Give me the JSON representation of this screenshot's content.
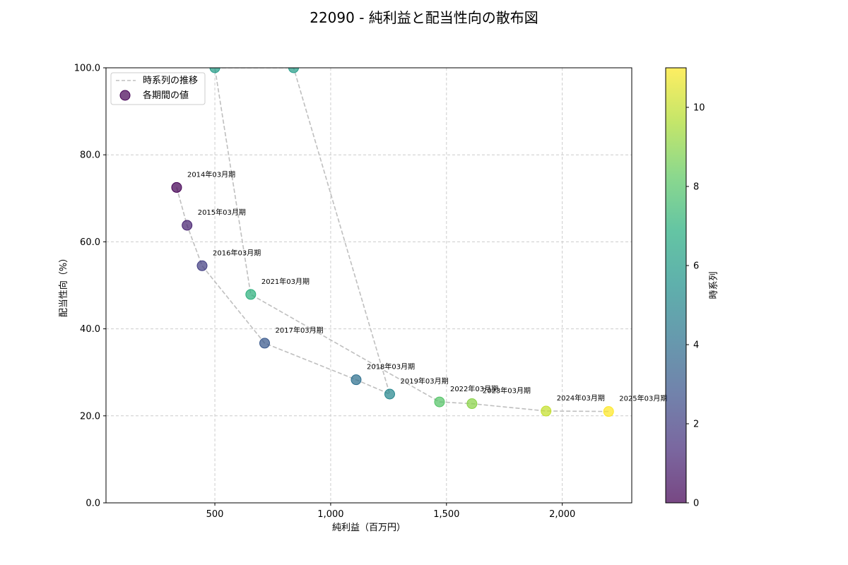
{
  "chart_data": {
    "type": "scatter",
    "title": "22090 - 純利益と配当性向の散布図",
    "xlabel": "純利益（百万円）",
    "ylabel": "配当性向（%）",
    "xlim": [
      30,
      2300
    ],
    "ylim": [
      0,
      100
    ],
    "xticks": [
      500,
      1000,
      1500,
      2000
    ],
    "xtick_labels": [
      "500",
      "1,000",
      "1,500",
      "2,000"
    ],
    "yticks": [
      0,
      20,
      40,
      60,
      80,
      100
    ],
    "ytick_labels": [
      "0.0",
      "20.0",
      "40.0",
      "60.0",
      "80.0",
      "100.0"
    ],
    "grid": true,
    "legend": {
      "position": "top-left",
      "entries": [
        "時系列の推移",
        "各期間の値"
      ]
    },
    "colorbar": {
      "label": "時系列",
      "range": [
        0,
        11
      ],
      "ticks": [
        0,
        2,
        4,
        6,
        8,
        10
      ],
      "colormap": "viridis"
    },
    "points": [
      {
        "label": "2014年03月期",
        "x": 335,
        "y": 72.5,
        "t": 0
      },
      {
        "label": "2015年03月期",
        "x": 380,
        "y": 63.8,
        "t": 1
      },
      {
        "label": "2016年03月期",
        "x": 445,
        "y": 54.5,
        "t": 2
      },
      {
        "label": "2017年03月期",
        "x": 715,
        "y": 36.7,
        "t": 3
      },
      {
        "label": "2018年03月期",
        "x": 1110,
        "y": 28.3,
        "t": 4
      },
      {
        "label": "2019年03月期",
        "x": 1255,
        "y": 25.0,
        "t": 5
      },
      {
        "label": "",
        "x": 840,
        "y": 100.0,
        "t": 6
      },
      {
        "label": "",
        "x": 500,
        "y": 100.0,
        "t": 6
      },
      {
        "label": "2021年03月期",
        "x": 655,
        "y": 47.9,
        "t": 7
      },
      {
        "label": "2022年03月期",
        "x": 1470,
        "y": 23.2,
        "t": 8
      },
      {
        "label": "2023年03月期",
        "x": 1610,
        "y": 22.8,
        "t": 9
      },
      {
        "label": "2024年03月期",
        "x": 1930,
        "y": 21.1,
        "t": 10
      },
      {
        "label": "2025年03月期",
        "x": 2200,
        "y": 21.0,
        "t": 11
      }
    ],
    "colors": {
      "trend_line": "#bfbfbf",
      "grid": "#cccccc"
    }
  }
}
